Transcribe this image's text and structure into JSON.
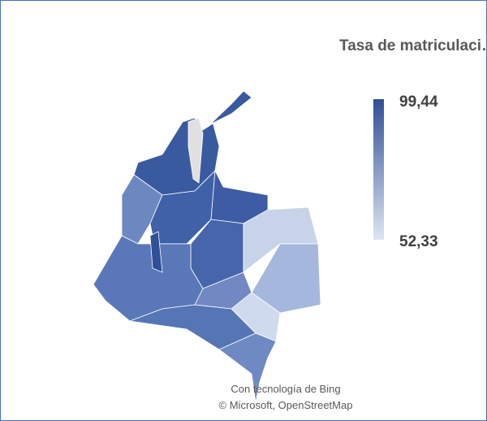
{
  "legend": {
    "title": "Tasa de matriculaci…",
    "max": {
      "value": 99.44,
      "label": "99,44"
    },
    "min": {
      "value": 52.33,
      "label": "52,33"
    },
    "color_high": "#2f4f96",
    "color_low": "#dde5f4"
  },
  "attribution": {
    "line1": "Con tecnología de Bing",
    "line2": "© Microsoft, OpenStreetMap"
  }
}
